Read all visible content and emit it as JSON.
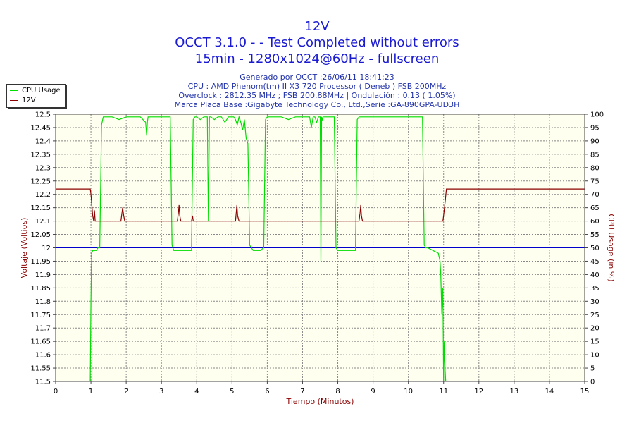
{
  "header": {
    "title": "12V",
    "subtitle1": "OCCT 3.1.0 -  - Test Completed without errors",
    "subtitle2": "15min - 1280x1024@60Hz - fullscreen",
    "info": [
      "Generado por OCCT :26/06/11 18:41:23",
      "CPU : AMD Phenom(tm) II X3 720 Processor ( Deneb ) FSB 200MHz",
      "Overclock : 2812.35 MHz ; FSB 200.88MHz | Ondulación : 0.13 ( 1.05%)",
      "Marca Placa Base :Gigabyte Technology Co., Ltd.,Serie :GA-890GPA-UD3H"
    ]
  },
  "legend": [
    {
      "name": "CPU Usage",
      "color": "#00dd00"
    },
    {
      "name": "12V",
      "color": "#8b0000"
    }
  ],
  "colors": {
    "plot_bg": "#fffff0",
    "grid": "#888888",
    "reference_line": "#0000cc",
    "axis_text": "#8b0000"
  },
  "chart_data": {
    "type": "line",
    "xlabel": "Tiempo (Minutos)",
    "ylabel_left": "Voltaje (Voltios)",
    "ylabel_right": "CPU Usage (in %)",
    "xlim": [
      0,
      15
    ],
    "ylim_left": [
      11.5,
      12.5
    ],
    "ylim_right": [
      0,
      100
    ],
    "x_ticks": [
      "0",
      "1",
      "2",
      "3",
      "4",
      "5",
      "6",
      "7",
      "8",
      "9",
      "10",
      "11",
      "12",
      "13",
      "14",
      "15"
    ],
    "y_ticks_left": [
      "11.5",
      "11.55",
      "11.6",
      "11.65",
      "11.7",
      "11.75",
      "11.8",
      "11.85",
      "11.9",
      "11.95",
      "12",
      "12.05",
      "12.1",
      "12.15",
      "12.2",
      "12.25",
      "12.3",
      "12.35",
      "12.4",
      "12.45",
      "12.5"
    ],
    "y_ticks_right": [
      "0",
      "5",
      "10",
      "15",
      "20",
      "25",
      "30",
      "35",
      "40",
      "45",
      "50",
      "55",
      "60",
      "65",
      "70",
      "75",
      "80",
      "85",
      "90",
      "95",
      "100"
    ],
    "grid": true,
    "reference_line_left": 12.0,
    "series": [
      {
        "name": "CPU Usage",
        "axis": "right",
        "x": [
          0.98,
          1.0,
          1.02,
          1.05,
          1.1,
          1.15,
          1.2,
          1.25,
          1.3,
          1.35,
          1.4,
          1.6,
          1.8,
          2.0,
          2.2,
          2.4,
          2.55,
          2.58,
          2.6,
          2.62,
          2.7,
          2.9,
          3.1,
          3.25,
          3.3,
          3.35,
          3.5,
          3.7,
          3.85,
          3.9,
          3.95,
          4.0,
          4.1,
          4.2,
          4.3,
          4.33,
          4.36,
          4.4,
          4.5,
          4.6,
          4.7,
          4.8,
          4.9,
          5.0,
          5.05,
          5.1,
          5.15,
          5.2,
          5.25,
          5.3,
          5.35,
          5.4,
          5.45,
          5.5,
          5.6,
          5.8,
          5.9,
          5.95,
          6.0,
          6.2,
          6.4,
          6.6,
          6.8,
          7.0,
          7.2,
          7.25,
          7.3,
          7.35,
          7.4,
          7.45,
          7.5,
          7.52,
          7.54,
          7.56,
          7.58,
          7.6,
          7.7,
          7.8,
          7.9,
          7.95,
          8.0,
          8.2,
          8.4,
          8.5,
          8.55,
          8.6,
          8.8,
          9.0,
          9.2,
          9.4,
          9.6,
          9.8,
          10.0,
          10.2,
          10.4,
          10.45,
          10.5,
          10.55,
          10.7,
          10.85,
          10.9,
          10.92,
          10.95,
          10.98,
          11.0,
          11.02,
          11.04,
          11.06
        ],
        "values": [
          0,
          30,
          48,
          49,
          49,
          49,
          50,
          50,
          96,
          99,
          99,
          99,
          98,
          99,
          99,
          99,
          97,
          92,
          97,
          99,
          99,
          99,
          99,
          99,
          51,
          49,
          49,
          49,
          49,
          98,
          99,
          99,
          98,
          99,
          99,
          60,
          99,
          99,
          98,
          99,
          99,
          97,
          99,
          99,
          99,
          98,
          96,
          99,
          97,
          94,
          98,
          91,
          89,
          51,
          49,
          49,
          50,
          98,
          99,
          99,
          99,
          98,
          99,
          99,
          99,
          95,
          99,
          99,
          97,
          99,
          99,
          45,
          99,
          98,
          99,
          99,
          99,
          99,
          99,
          50,
          49,
          49,
          49,
          49,
          98,
          99,
          99,
          99,
          99,
          99,
          99,
          99,
          99,
          99,
          99,
          51,
          50,
          50,
          49,
          48,
          45,
          40,
          25,
          35,
          0,
          15,
          5,
          0
        ]
      },
      {
        "name": "12V",
        "axis": "left",
        "x": [
          0,
          0.98,
          1.0,
          1.05,
          1.08,
          1.1,
          1.12,
          1.15,
          1.18,
          1.2,
          1.25,
          1.5,
          1.85,
          1.88,
          1.9,
          1.93,
          1.96,
          2.0,
          2.5,
          3.0,
          3.45,
          3.48,
          3.5,
          3.52,
          3.55,
          3.6,
          3.8,
          3.85,
          3.88,
          3.9,
          4.0,
          4.5,
          5.0,
          5.1,
          5.12,
          5.14,
          5.16,
          5.2,
          5.5,
          6.0,
          7.0,
          8.0,
          8.6,
          8.63,
          8.65,
          8.67,
          8.7,
          8.8,
          9.0,
          10.0,
          10.5,
          10.98,
          11.0,
          11.05,
          11.08,
          15.0
        ],
        "values": [
          12.22,
          12.22,
          12.2,
          12.12,
          12.1,
          12.14,
          12.1,
          12.1,
          12.1,
          12.1,
          12.1,
          12.1,
          12.1,
          12.13,
          12.15,
          12.12,
          12.1,
          12.1,
          12.1,
          12.1,
          12.1,
          12.13,
          12.16,
          12.12,
          12.1,
          12.1,
          12.1,
          12.1,
          12.12,
          12.1,
          12.1,
          12.1,
          12.1,
          12.1,
          12.13,
          12.16,
          12.12,
          12.1,
          12.1,
          12.1,
          12.1,
          12.1,
          12.1,
          12.13,
          12.16,
          12.12,
          12.1,
          12.1,
          12.1,
          12.1,
          12.1,
          12.1,
          12.12,
          12.18,
          12.22,
          12.22
        ]
      }
    ]
  }
}
